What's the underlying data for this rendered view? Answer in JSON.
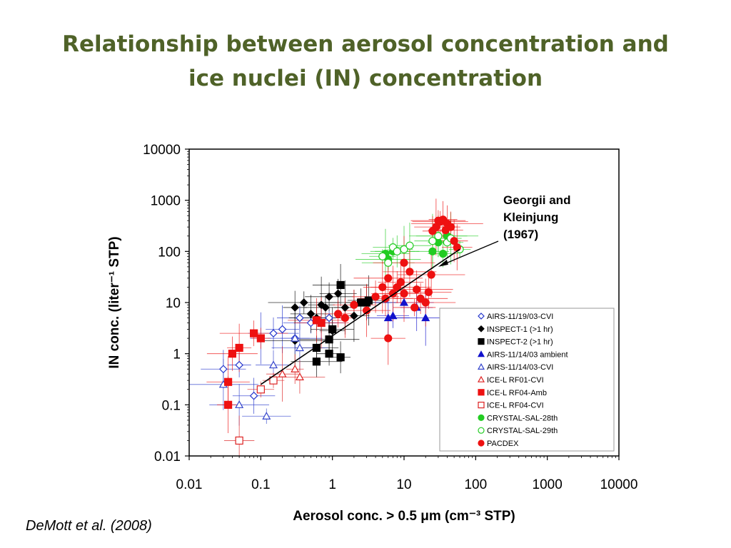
{
  "slide": {
    "title_line1": "Relationship between aerosol concentration and",
    "title_line2": "ice nuclei (IN) concentration",
    "citation": "DeMott et al. (2008)"
  },
  "chart_data": {
    "type": "scatter",
    "xlabel": "Aerosol conc. > 0.5 μm (cm⁻³ STP)",
    "ylabel": "IN conc.  (liter⁻¹ STP)",
    "xscale": "log",
    "yscale": "log",
    "xlim": [
      0.01,
      10000
    ],
    "ylim": [
      0.01,
      10000
    ],
    "x_ticks": [
      "0.01",
      "0.1",
      "1",
      "10",
      "100",
      "1000",
      "10000"
    ],
    "y_ticks": [
      "0.01",
      "0.1",
      "1",
      "10",
      "100",
      "1000",
      "10000"
    ],
    "legend_position": "lower-right",
    "annotation": {
      "lines": [
        "Georgii and",
        "Kleinjung",
        "(1967)"
      ],
      "points_to": {
        "x": 30,
        "y": 50
      }
    },
    "reference_line": {
      "name": "Georgii and Kleinjung (1967)",
      "points": [
        [
          0.1,
          0.25
        ],
        [
          60,
          110
        ]
      ],
      "color": "#000000"
    },
    "series": [
      {
        "name": "AIRS-11/19/03-CVI",
        "marker": "diamond-open",
        "color": "#2233cc",
        "points": [
          [
            0.03,
            0.5
          ],
          [
            0.05,
            0.6
          ],
          [
            0.08,
            0.15
          ],
          [
            0.1,
            2
          ],
          [
            0.15,
            2.5
          ],
          [
            0.2,
            3
          ],
          [
            0.3,
            2
          ],
          [
            0.35,
            5
          ],
          [
            0.5,
            4
          ],
          [
            0.7,
            4
          ],
          [
            0.9,
            5
          ]
        ]
      },
      {
        "name": "INSPECT-1 (>1 hr)",
        "marker": "diamond-filled",
        "color": "#000000",
        "points": [
          [
            0.3,
            1.8
          ],
          [
            0.3,
            8
          ],
          [
            0.4,
            10
          ],
          [
            0.5,
            6
          ],
          [
            0.6,
            5
          ],
          [
            0.7,
            9
          ],
          [
            0.8,
            8
          ],
          [
            0.9,
            13
          ],
          [
            1,
            2.8
          ],
          [
            1.2,
            15
          ],
          [
            1.5,
            8
          ],
          [
            2,
            5.5
          ]
        ]
      },
      {
        "name": "INSPECT-2 (>1 hr)",
        "marker": "square-filled",
        "color": "#000000",
        "points": [
          [
            0.6,
            1.3
          ],
          [
            0.6,
            0.7
          ],
          [
            0.9,
            1.9
          ],
          [
            0.9,
            1
          ],
          [
            1,
            3
          ],
          [
            1.3,
            0.85
          ],
          [
            1.3,
            22
          ],
          [
            2.5,
            10
          ],
          [
            3,
            10
          ],
          [
            3.2,
            11
          ]
        ]
      },
      {
        "name": "AIRS-11/14/03 ambient",
        "marker": "triangle-filled",
        "color": "#1111cc",
        "points": [
          [
            6,
            5
          ],
          [
            7,
            5.5
          ],
          [
            10,
            10
          ],
          [
            15,
            8
          ],
          [
            20,
            5
          ]
        ]
      },
      {
        "name": "AIRS-11/14/03-CVI",
        "marker": "triangle-open",
        "color": "#3344cc",
        "points": [
          [
            0.03,
            0.25
          ],
          [
            0.05,
            0.1
          ],
          [
            0.12,
            0.06
          ],
          [
            0.15,
            0.6
          ],
          [
            0.3,
            2
          ],
          [
            0.35,
            1.3
          ]
        ]
      },
      {
        "name": "ICE-L RF01-CVI",
        "marker": "triangle-open",
        "color": "#dd2222",
        "points": [
          [
            0.2,
            0.4
          ],
          [
            0.3,
            0.5
          ],
          [
            0.35,
            0.35
          ]
        ]
      },
      {
        "name": "ICE-L RF04-Amb",
        "marker": "square-filled",
        "color": "#ee1111",
        "points": [
          [
            0.035,
            0.1
          ],
          [
            0.035,
            0.28
          ],
          [
            0.04,
            1
          ],
          [
            0.05,
            1.3
          ],
          [
            0.08,
            2.5
          ],
          [
            0.1,
            2
          ],
          [
            0.6,
            4.5
          ],
          [
            0.7,
            4
          ]
        ]
      },
      {
        "name": "ICE-L RF04-CVI",
        "marker": "square-open",
        "color": "#dd2222",
        "points": [
          [
            0.05,
            0.02
          ],
          [
            0.1,
            0.2
          ],
          [
            0.15,
            0.3
          ]
        ]
      },
      {
        "name": "CRYSTAL-SAL-28th",
        "marker": "circle-filled",
        "color": "#22cc22",
        "points": [
          [
            5.5,
            90
          ],
          [
            6,
            70
          ],
          [
            7,
            100
          ],
          [
            25,
            100
          ],
          [
            30,
            150
          ],
          [
            35,
            90
          ],
          [
            40,
            200
          ]
        ]
      },
      {
        "name": "CRYSTAL-SAL-29th",
        "marker": "circle-open",
        "color": "#22cc22",
        "points": [
          [
            5,
            80
          ],
          [
            6,
            60
          ],
          [
            7,
            120
          ],
          [
            8,
            100
          ],
          [
            10,
            110
          ],
          [
            12,
            130
          ],
          [
            25,
            160
          ],
          [
            30,
            200
          ],
          [
            40,
            150
          ],
          [
            45,
            180
          ],
          [
            60,
            110
          ]
        ]
      },
      {
        "name": "PACDEX",
        "marker": "circle-filled",
        "color": "#ee1111",
        "points": [
          [
            1.2,
            6
          ],
          [
            1.5,
            5
          ],
          [
            2,
            9
          ],
          [
            3,
            7
          ],
          [
            4,
            13
          ],
          [
            5,
            20
          ],
          [
            5.5,
            12
          ],
          [
            6,
            30
          ],
          [
            7,
            15
          ],
          [
            8,
            20
          ],
          [
            9,
            25
          ],
          [
            10,
            60
          ],
          [
            10,
            15
          ],
          [
            12,
            40
          ],
          [
            14,
            8
          ],
          [
            15,
            18
          ],
          [
            17,
            12
          ],
          [
            20,
            10
          ],
          [
            22,
            16
          ],
          [
            24,
            35
          ],
          [
            25,
            250
          ],
          [
            28,
            300
          ],
          [
            30,
            400
          ],
          [
            32,
            380
          ],
          [
            35,
            420
          ],
          [
            38,
            260
          ],
          [
            40,
            350
          ],
          [
            45,
            300
          ],
          [
            50,
            160
          ],
          [
            55,
            120
          ],
          [
            6,
            2
          ]
        ]
      }
    ]
  }
}
